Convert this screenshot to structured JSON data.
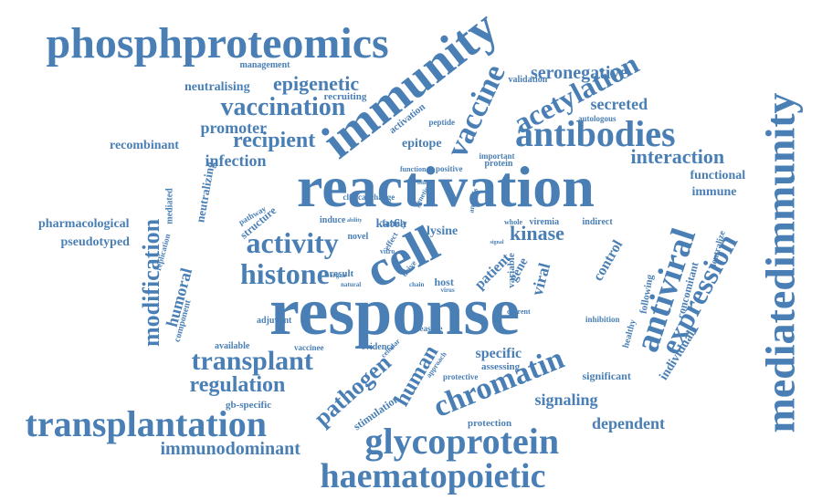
{
  "color": "#4a7fb5",
  "words": [
    "phosphproteomics",
    "immunity",
    "reactivation",
    "response",
    "antibodies",
    "cell",
    "vaccine",
    "mediatedimmunity",
    "transplantation",
    "glycoprotein",
    "haematopoietic",
    "chromatin",
    "antiviral",
    "expression",
    "histone",
    "activity",
    "transplant",
    "modification",
    "acetylation",
    "vaccination",
    "epigenetic",
    "regulation",
    "pathogen",
    "immunodominant",
    "kinase",
    "interaction",
    "human",
    "recipient",
    "seronegative",
    "secreted",
    "specific",
    "signaling",
    "dependent",
    "infection",
    "promoter",
    "humoral",
    "neutralising",
    "recombinant",
    "pharmacological",
    "pseudotyped",
    "epitope",
    "functional",
    "immune",
    "individual",
    "viral",
    "control",
    "gene",
    "lysine",
    "kat6a",
    "recruiting",
    "management",
    "validation",
    "autologous",
    "activation",
    "significant",
    "protection",
    "assessing",
    "gb-specific",
    "stimulation",
    "available",
    "adjuvant",
    "concomitant",
    "neutralize",
    "following",
    "healthy",
    "inhibition",
    "component",
    "mediated",
    "neutralizing",
    "replication",
    "structure",
    "pathway",
    "evidence",
    "result",
    "vaccinee",
    "protective",
    "patient",
    "variable",
    "host",
    "novel",
    "family",
    "induce",
    "protein",
    "important",
    "peptide",
    "function",
    "positive",
    "clinical change",
    "analysis",
    "viremia",
    "indirect",
    "whole",
    "genetic",
    "drive",
    "effect",
    "vitro",
    "approach",
    "measure",
    "cellular",
    "organ",
    "natural",
    "chain",
    "virus",
    "current",
    "signal",
    "ability",
    "bind",
    "lysate"
  ]
}
